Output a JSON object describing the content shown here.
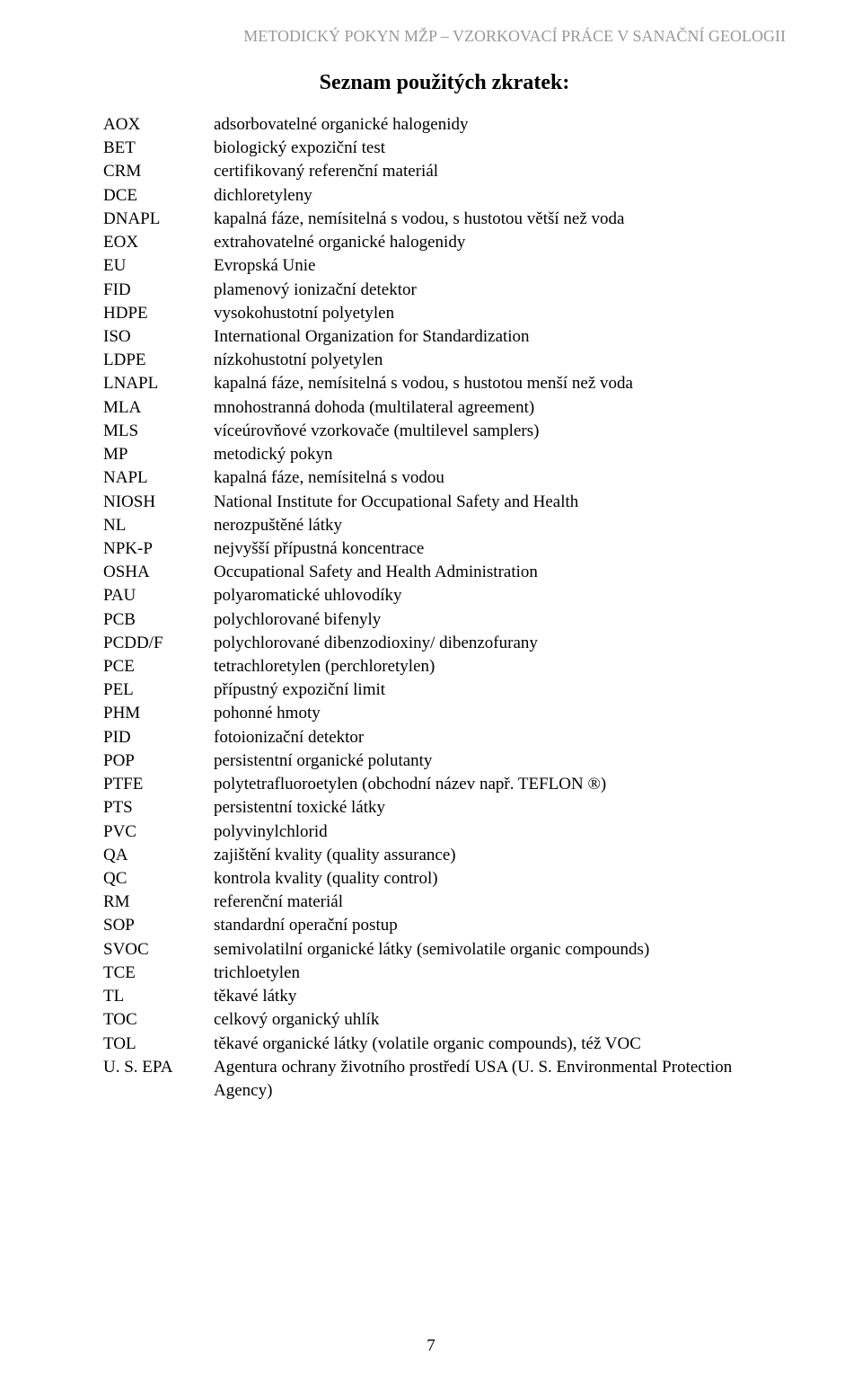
{
  "document": {
    "header": "METODICKÝ POKYN MŽP – VZORKOVACÍ PRÁCE V SANAČNÍ GEOLOGII",
    "title": "Seznam použitých zkratek:",
    "page_number": "7",
    "header_color": "#999999",
    "text_color": "#000000",
    "background": "#ffffff",
    "font_family": "Times New Roman",
    "title_fontsize": 24,
    "body_fontsize": 19
  },
  "abbreviations": [
    {
      "abbr": "AOX",
      "desc": "adsorbovatelné organické halogenidy"
    },
    {
      "abbr": "BET",
      "desc": "biologický expoziční test"
    },
    {
      "abbr": "CRM",
      "desc": "certifikovaný referenční materiál"
    },
    {
      "abbr": "DCE",
      "desc": "dichloretyleny"
    },
    {
      "abbr": "DNAPL",
      "desc": "kapalná fáze, nemísitelná s vodou, s hustotou větší než voda"
    },
    {
      "abbr": "EOX",
      "desc": "extrahovatelné organické halogenidy"
    },
    {
      "abbr": "EU",
      "desc": "Evropská Unie"
    },
    {
      "abbr": "FID",
      "desc": "plamenový ionizační detektor"
    },
    {
      "abbr": "HDPE",
      "desc": "vysokohustotní polyetylen"
    },
    {
      "abbr": "ISO",
      "desc": "International Organization for Standardization"
    },
    {
      "abbr": "LDPE",
      "desc": "nízkohustotní polyetylen"
    },
    {
      "abbr": "LNAPL",
      "desc": "kapalná fáze, nemísitelná s vodou, s hustotou menší než voda"
    },
    {
      "abbr": "MLA",
      "desc": "mnohostranná dohoda (multilateral agreement)"
    },
    {
      "abbr": "MLS",
      "desc": "víceúrovňové vzorkovače (multilevel samplers)"
    },
    {
      "abbr": "MP",
      "desc": "metodický pokyn"
    },
    {
      "abbr": "NAPL",
      "desc": "kapalná fáze, nemísitelná s vodou"
    },
    {
      "abbr": "NIOSH",
      "desc": "National Institute for Occupational Safety and Health"
    },
    {
      "abbr": "NL",
      "desc": "nerozpuštěné látky"
    },
    {
      "abbr": "NPK-P",
      "desc": "nejvyšší přípustná koncentrace"
    },
    {
      "abbr": "OSHA",
      "desc": "Occupational Safety and Health Administration"
    },
    {
      "abbr": "PAU",
      "desc": "polyaromatické uhlovodíky"
    },
    {
      "abbr": "PCB",
      "desc": "polychlorované bifenyly"
    },
    {
      "abbr": "PCDD/F",
      "desc": "polychlorované dibenzodioxiny/ dibenzofurany"
    },
    {
      "abbr": "PCE",
      "desc": "tetrachloretylen (perchloretylen)"
    },
    {
      "abbr": "PEL",
      "desc": "přípustný expoziční limit"
    },
    {
      "abbr": "PHM",
      "desc": "pohonné hmoty"
    },
    {
      "abbr": "PID",
      "desc": "fotoionizační detektor"
    },
    {
      "abbr": "POP",
      "desc": "persistentní organické polutanty"
    },
    {
      "abbr": "PTFE",
      "desc": "polytetrafluoroetylen (obchodní název např. TEFLON ®)"
    },
    {
      "abbr": "PTS",
      "desc": "persistentní toxické látky"
    },
    {
      "abbr": "PVC",
      "desc": "polyvinylchlorid"
    },
    {
      "abbr": "QA",
      "desc": "zajištění kvality (quality assurance)"
    },
    {
      "abbr": "QC",
      "desc": "kontrola kvality (quality control)"
    },
    {
      "abbr": "RM",
      "desc": "referenční materiál"
    },
    {
      "abbr": "SOP",
      "desc": "standardní operační postup"
    },
    {
      "abbr": "SVOC",
      "desc": "semivolatilní organické látky (semivolatile organic compounds)"
    },
    {
      "abbr": "TCE",
      "desc": "trichloetylen"
    },
    {
      "abbr": "TL",
      "desc": "těkavé látky"
    },
    {
      "abbr": "TOC",
      "desc": "celkový organický uhlík"
    },
    {
      "abbr": "TOL",
      "desc": "těkavé organické látky (volatile organic compounds), též VOC"
    },
    {
      "abbr": "U. S. EPA",
      "desc": "Agentura ochrany životního prostředí USA (U. S. Environmental Protection Agency)"
    }
  ]
}
